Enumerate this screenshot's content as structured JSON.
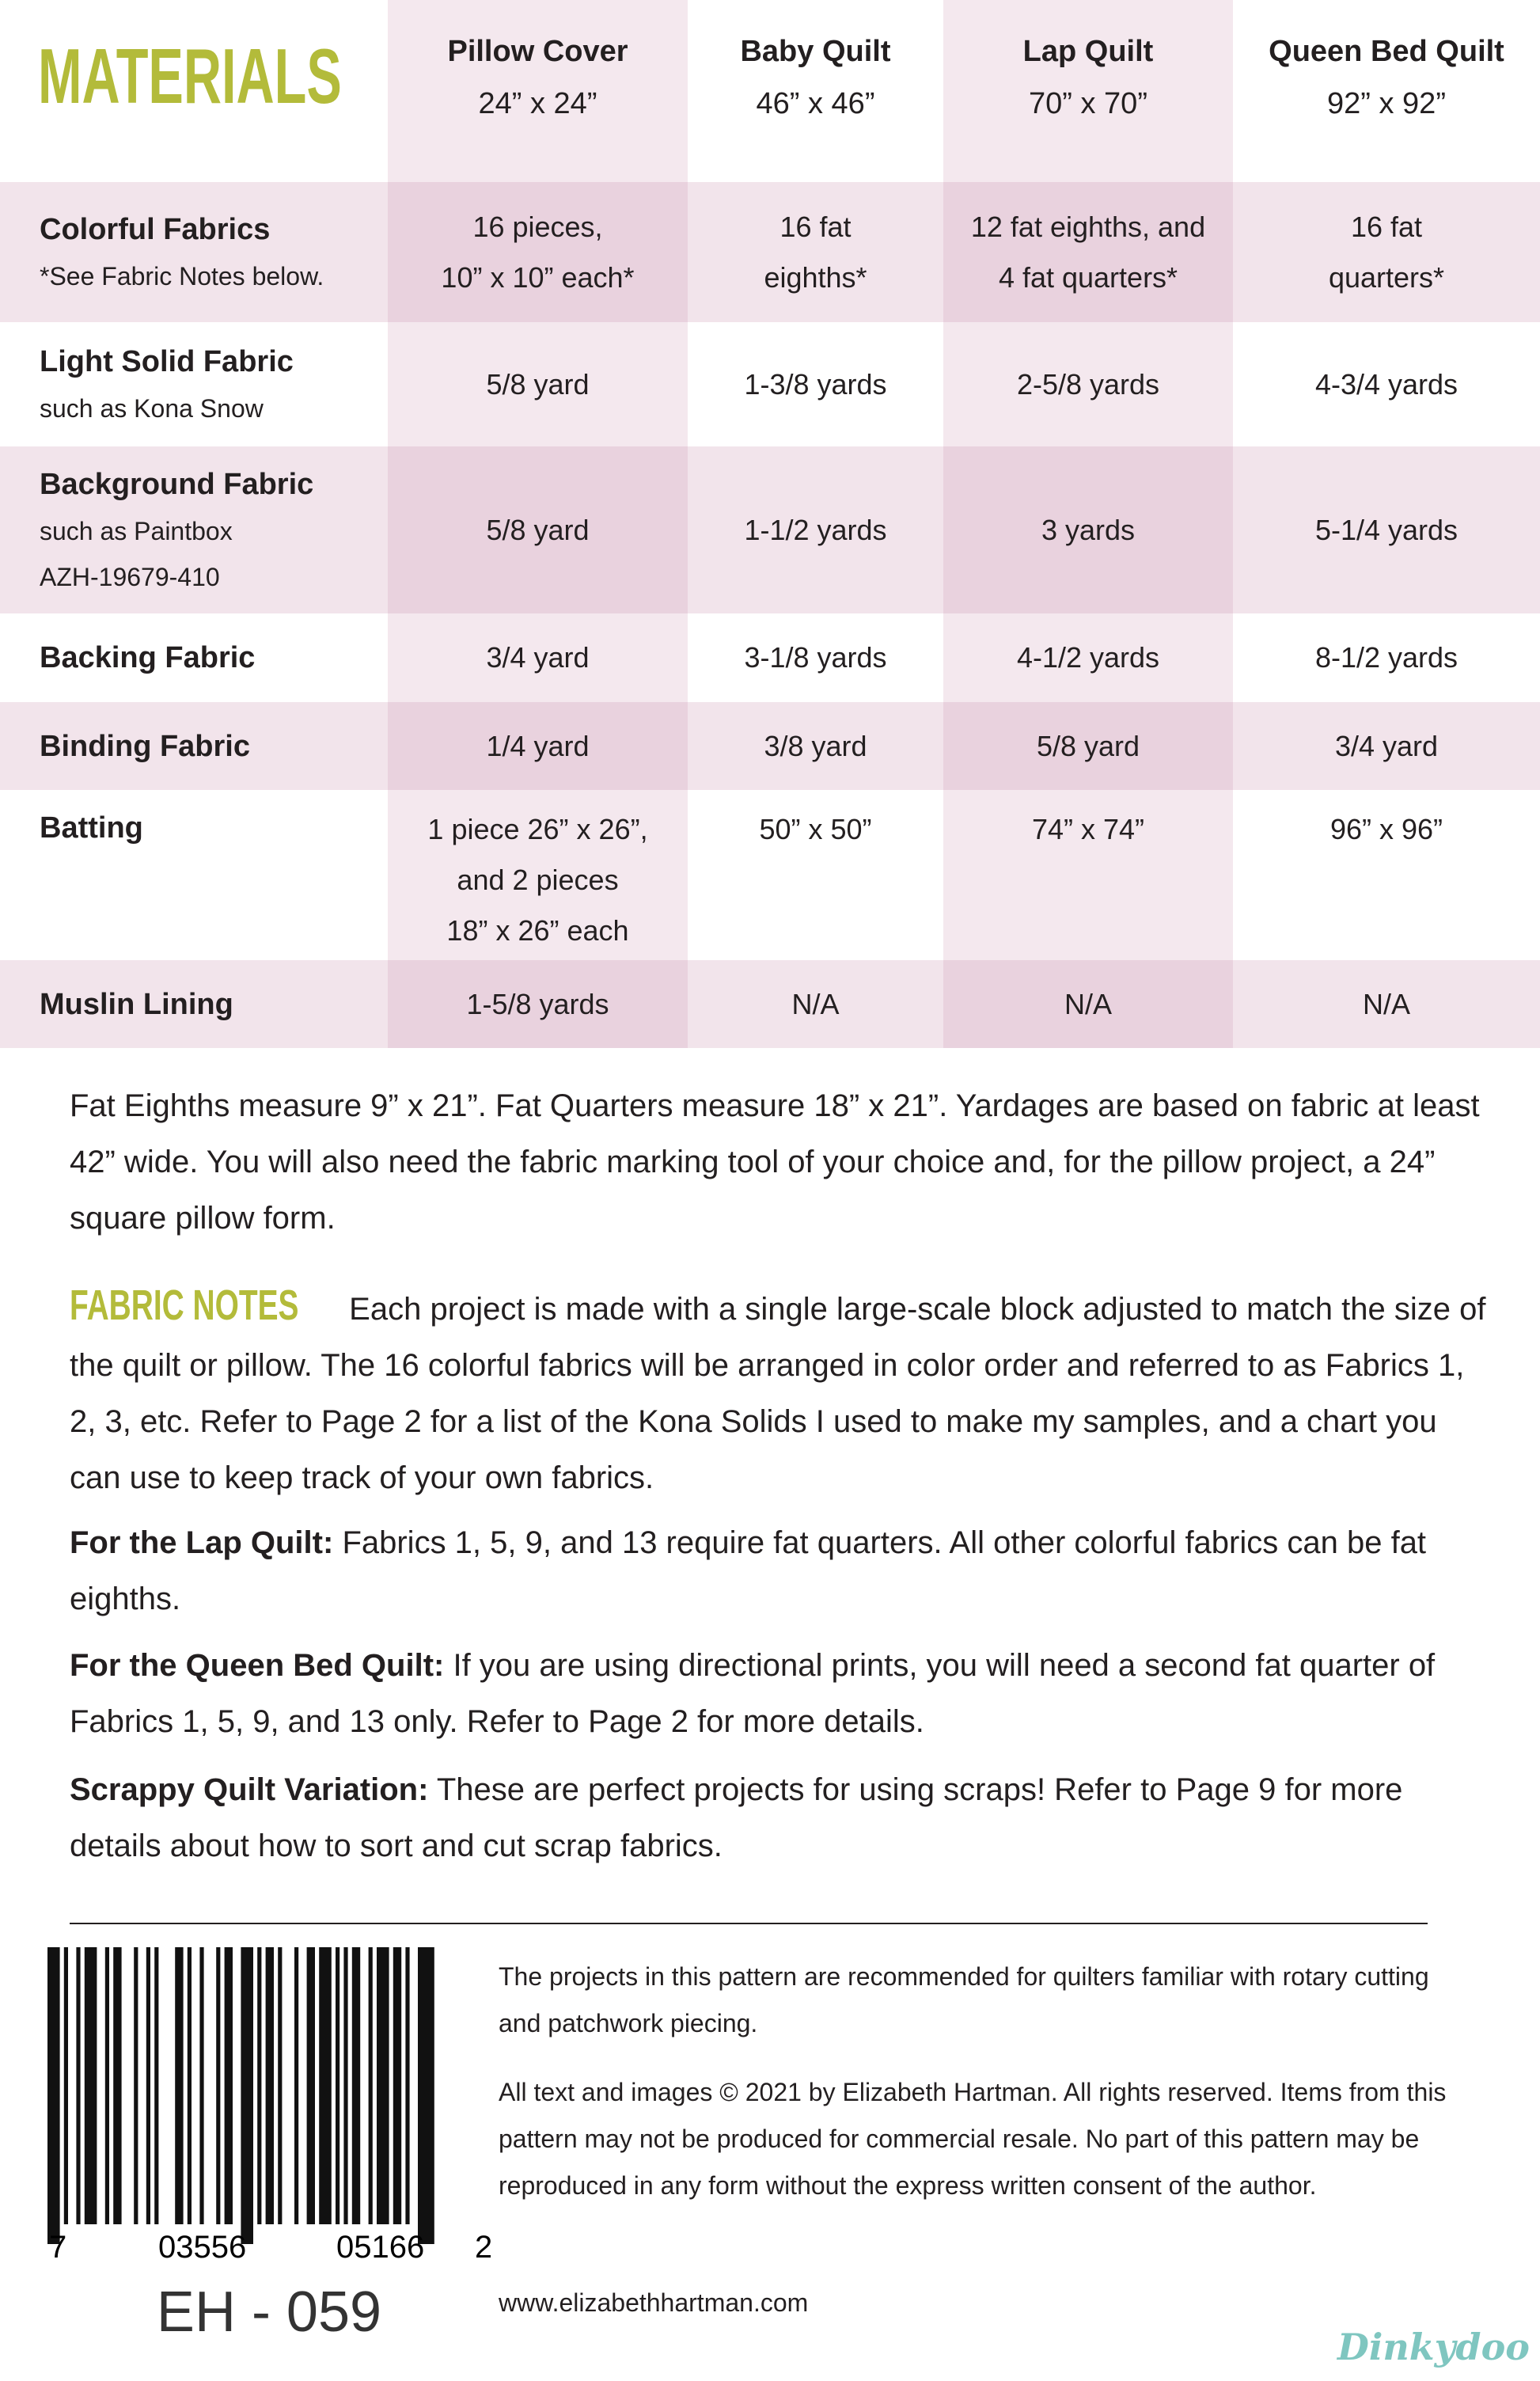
{
  "header": {
    "title": "MATERIALS"
  },
  "table": {
    "columns": [
      {
        "name": "Pillow Cover",
        "size": "24” x 24”"
      },
      {
        "name": "Baby Quilt",
        "size": "46” x 46”"
      },
      {
        "name": "Lap Quilt",
        "size": "70” x 70”"
      },
      {
        "name": "Queen Bed Quilt",
        "size": "92” x 92”"
      }
    ],
    "rows": [
      {
        "label": "Colorful Fabrics",
        "sublabel": [
          "*See Fabric Notes below."
        ],
        "cells": [
          [
            "16 pieces,",
            "10” x 10” each*"
          ],
          [
            "16 fat",
            "eighths*"
          ],
          [
            "12 fat eighths, and",
            "4 fat quarters*"
          ],
          [
            "16 fat",
            "quarters*"
          ]
        ]
      },
      {
        "label": "Light Solid Fabric",
        "sublabel": [
          "such as Kona Snow"
        ],
        "cells": [
          [
            "5/8 yard"
          ],
          [
            "1-3/8 yards"
          ],
          [
            "2-5/8 yards"
          ],
          [
            "4-3/4 yards"
          ]
        ]
      },
      {
        "label": "Background Fabric",
        "sublabel": [
          "such as Paintbox",
          "AZH-19679-410"
        ],
        "cells": [
          [
            "5/8 yard"
          ],
          [
            "1-1/2 yards"
          ],
          [
            "3 yards"
          ],
          [
            "5-1/4 yards"
          ]
        ]
      },
      {
        "label": "Backing Fabric",
        "sublabel": [],
        "cells": [
          [
            "3/4 yard"
          ],
          [
            "3-1/8 yards"
          ],
          [
            "4-1/2 yards"
          ],
          [
            "8-1/2 yards"
          ]
        ]
      },
      {
        "label": "Binding Fabric",
        "sublabel": [],
        "cells": [
          [
            "1/4 yard"
          ],
          [
            "3/8 yard"
          ],
          [
            "5/8 yard"
          ],
          [
            "3/4 yard"
          ]
        ]
      },
      {
        "label": "Batting",
        "sublabel": [],
        "cells": [
          [
            "1 piece 26” x 26”,",
            "and 2 pieces",
            "18” x 26” each"
          ],
          [
            "50” x 50”"
          ],
          [
            "74” x 74”"
          ],
          [
            "96” x 96”"
          ]
        ]
      },
      {
        "label": "Muslin Lining",
        "sublabel": [],
        "cells": [
          [
            "1-5/8 yards"
          ],
          [
            "N/A"
          ],
          [
            "N/A"
          ],
          [
            "N/A"
          ]
        ]
      }
    ]
  },
  "notes": {
    "intro": "Fat Eighths measure 9” x 21”. Fat Quarters measure 18” x 21”. Yardages are based on fabric at least 42” wide. You will also need the fabric marking tool of your choice and, for the pillow project, a 24” square pillow form.",
    "fabric_notes_heading": "FABRIC NOTES",
    "fabric_notes": "Each project is made with a single large-scale block adjusted to match the size of the quilt or pillow. The 16 colorful fabrics will be arranged in color order and referred to as Fabrics 1, 2, 3, etc. Refer to Page 2 for a list of the Kona Solids I used to make my samples, and a chart you can use to keep track of your own fabrics.",
    "paragraphs": [
      {
        "lead": "For the Lap Quilt:",
        "text": "Fabrics 1, 5, 9, and 13 require fat quarters. All other colorful fabrics can be fat eighths."
      },
      {
        "lead": "For the Queen Bed Quilt:",
        "text": "If you are using directional prints, you will need a second fat quarter of Fabrics 1, 5, 9, and 13 only. Refer to Page 2 for more details."
      },
      {
        "lead": "Scrappy Quilt Variation:",
        "text": "These are perfect projects for using scraps! Refer to Page 9 for more details about how to sort and cut scrap fabrics."
      }
    ]
  },
  "footer": {
    "barcode_digits": [
      "7",
      "03556",
      "05166",
      "2"
    ],
    "code": "EH - 059",
    "paragraphs": [
      "The projects in this pattern are recommended for quilters familiar with rotary cutting and patchwork piecing.",
      "All text and images © 2021 by Elizabeth Hartman. All rights reserved. Items from this pattern may not be produced for commercial resale. No part of this pattern may be reproduced in any form without the express written consent of the author."
    ],
    "website": "www.elizabethhartman.com",
    "watermark": "Dinkydoo"
  }
}
